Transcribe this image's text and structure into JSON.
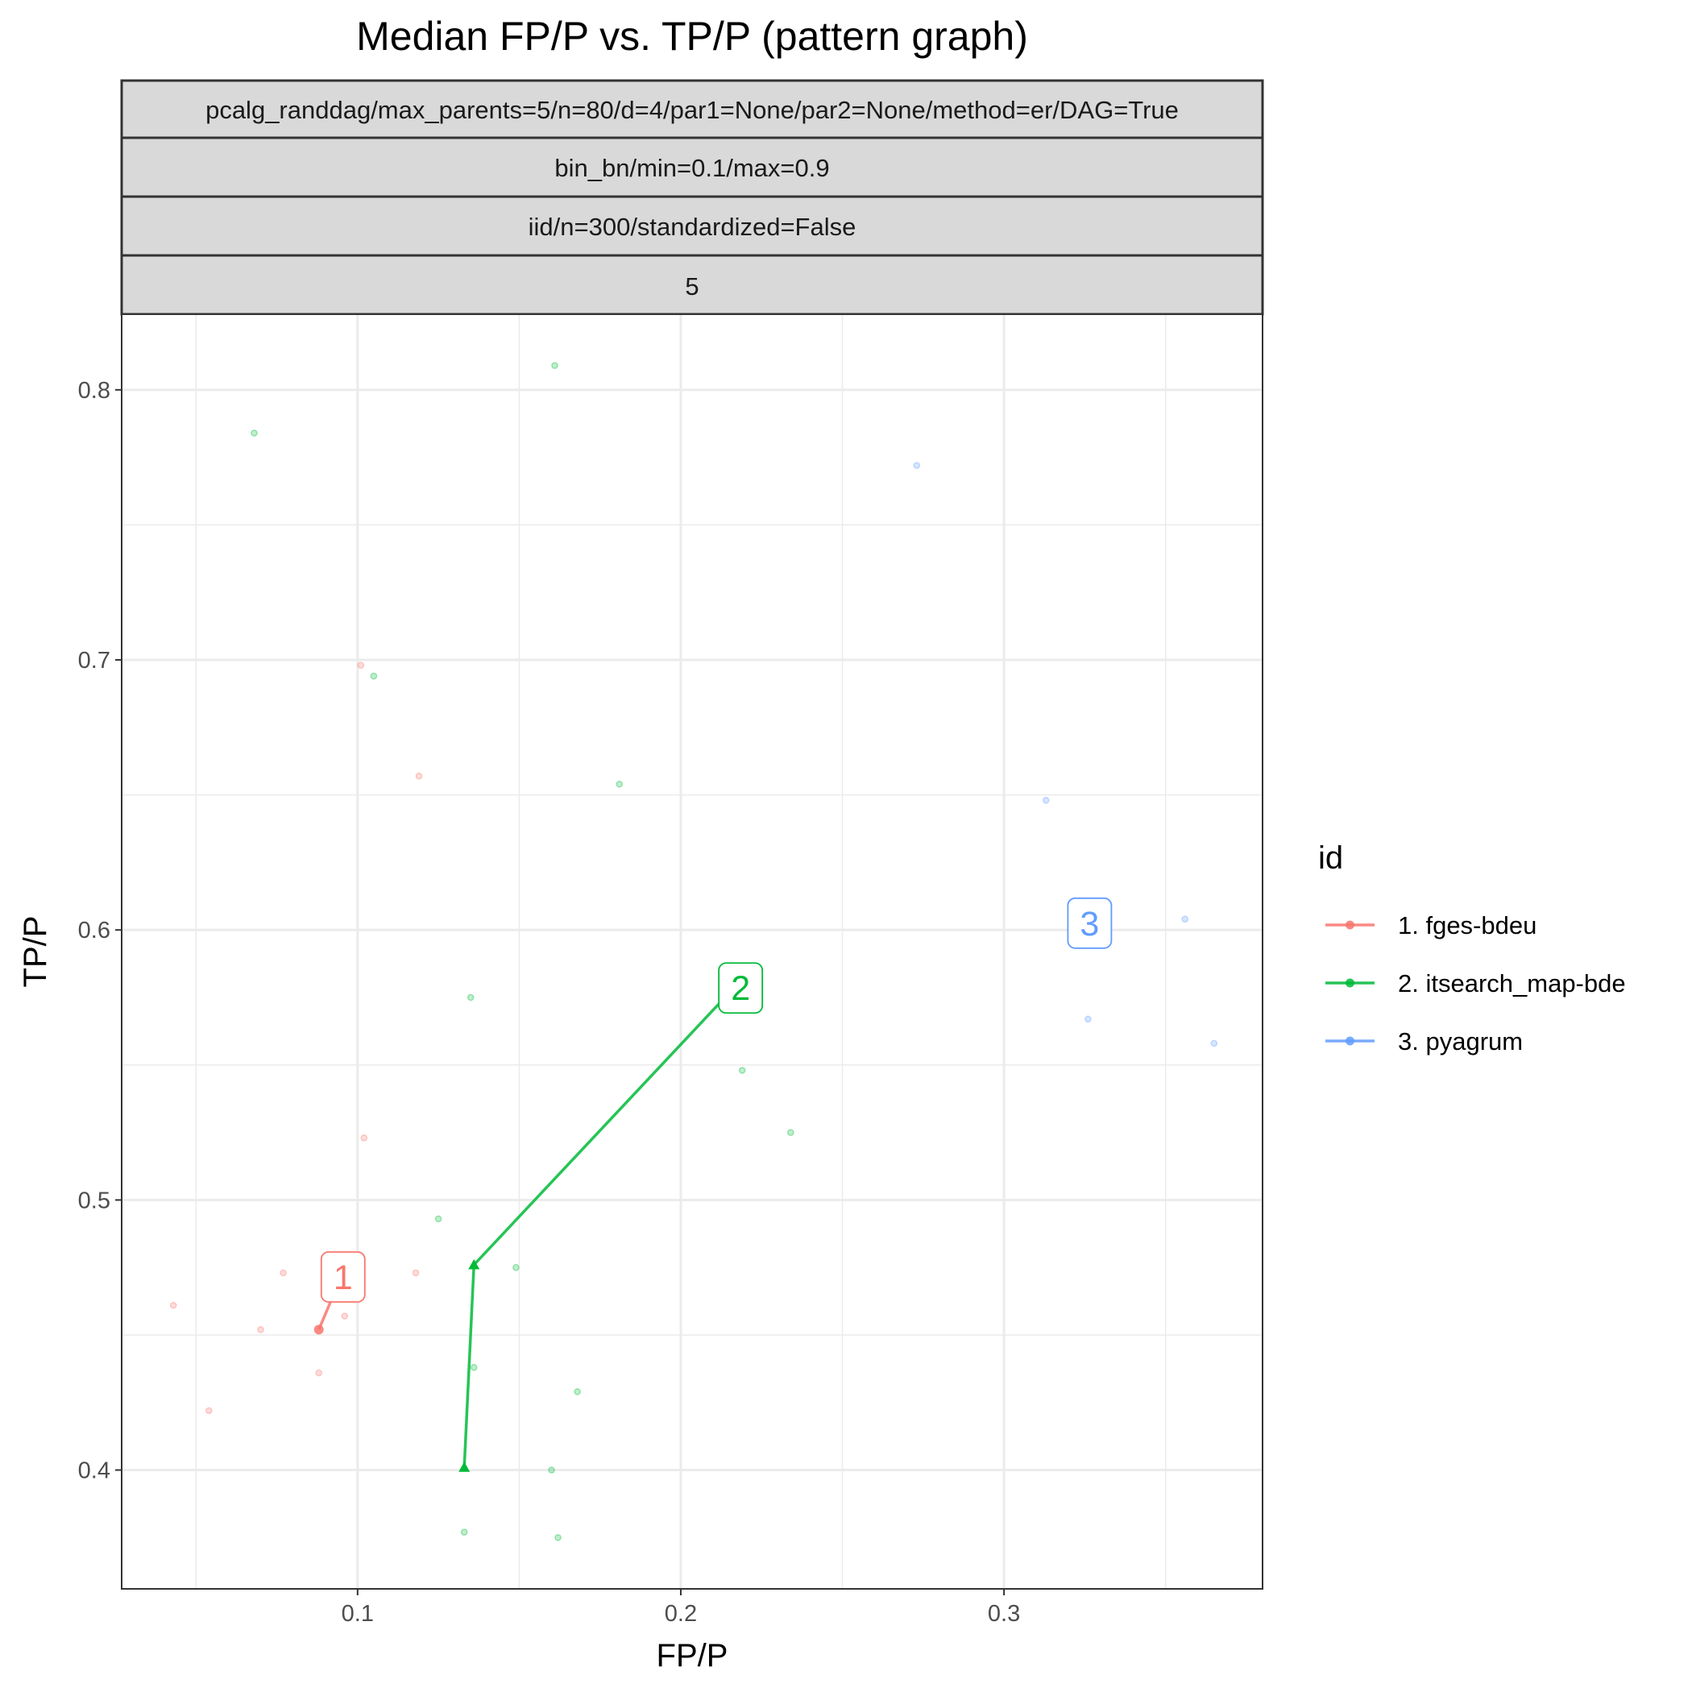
{
  "chart_data": {
    "type": "scatter",
    "title": "Median FP/P vs. TP/P (pattern graph)",
    "xlabel": "FP/P",
    "ylabel": "TP/P",
    "xlim": [
      0.027,
      0.38
    ],
    "ylim": [
      0.356,
      0.828
    ],
    "x_ticks": [
      0.1,
      0.2,
      0.3
    ],
    "x_tick_labels": [
      "0.1",
      "0.2",
      "0.3"
    ],
    "x_minor": [
      0.05,
      0.15,
      0.25,
      0.35
    ],
    "y_ticks": [
      0.4,
      0.5,
      0.6,
      0.7,
      0.8
    ],
    "y_tick_labels": [
      "0.4",
      "0.5",
      "0.6",
      "0.7",
      "0.8"
    ],
    "y_minor": [
      0.45,
      0.55,
      0.65,
      0.75
    ],
    "grid": true,
    "legend_position": "right",
    "facet_strips": [
      "pcalg_randdag/max_parents=5/n=80/d=4/par1=None/par2=None/method=er/DAG=True",
      "bin_bn/min=0.1/max=0.9",
      "iid/n=300/standardized=False",
      "5"
    ],
    "legend": {
      "title": "id",
      "entries": [
        "1. fges-bdeu",
        "2. itsearch_map-bde",
        "3. pyagrum"
      ]
    },
    "series": [
      {
        "name": "1. fges-bdeu",
        "color": "#F8766D",
        "label": "1",
        "points": [
          [
            0.043,
            0.461
          ],
          [
            0.054,
            0.422
          ],
          [
            0.07,
            0.452
          ],
          [
            0.077,
            0.473
          ],
          [
            0.088,
            0.436
          ],
          [
            0.096,
            0.457
          ],
          [
            0.101,
            0.698
          ],
          [
            0.102,
            0.523
          ],
          [
            0.119,
            0.657
          ],
          [
            0.118,
            0.473
          ]
        ],
        "path": [
          [
            0.088,
            0.452
          ],
          [
            0.094,
            0.469
          ]
        ],
        "path_marker": "circle",
        "label_pos": [
          0.0955,
          0.4715
        ]
      },
      {
        "name": "2. itsearch_map-bde",
        "color": "#00BA38",
        "label": "2",
        "points": [
          [
            0.068,
            0.784
          ],
          [
            0.105,
            0.694
          ],
          [
            0.125,
            0.493
          ],
          [
            0.133,
            0.377
          ],
          [
            0.135,
            0.575
          ],
          [
            0.136,
            0.438
          ],
          [
            0.149,
            0.475
          ],
          [
            0.16,
            0.4
          ],
          [
            0.161,
            0.809
          ],
          [
            0.162,
            0.375
          ],
          [
            0.168,
            0.429
          ],
          [
            0.181,
            0.654
          ],
          [
            0.219,
            0.548
          ],
          [
            0.234,
            0.525
          ]
        ],
        "path": [
          [
            0.133,
            0.401
          ],
          [
            0.136,
            0.476
          ],
          [
            0.216,
            0.578
          ]
        ],
        "path_marker": "triangle",
        "label_pos": [
          0.2185,
          0.5785
        ]
      },
      {
        "name": "3. pyagrum",
        "color": "#619CFF",
        "label": "3",
        "points": [
          [
            0.273,
            0.772
          ],
          [
            0.313,
            0.648
          ],
          [
            0.326,
            0.567
          ],
          [
            0.356,
            0.604
          ],
          [
            0.365,
            0.558
          ]
        ],
        "path": [],
        "path_marker": "none",
        "label_pos": [
          0.3265,
          0.6025
        ]
      }
    ]
  }
}
